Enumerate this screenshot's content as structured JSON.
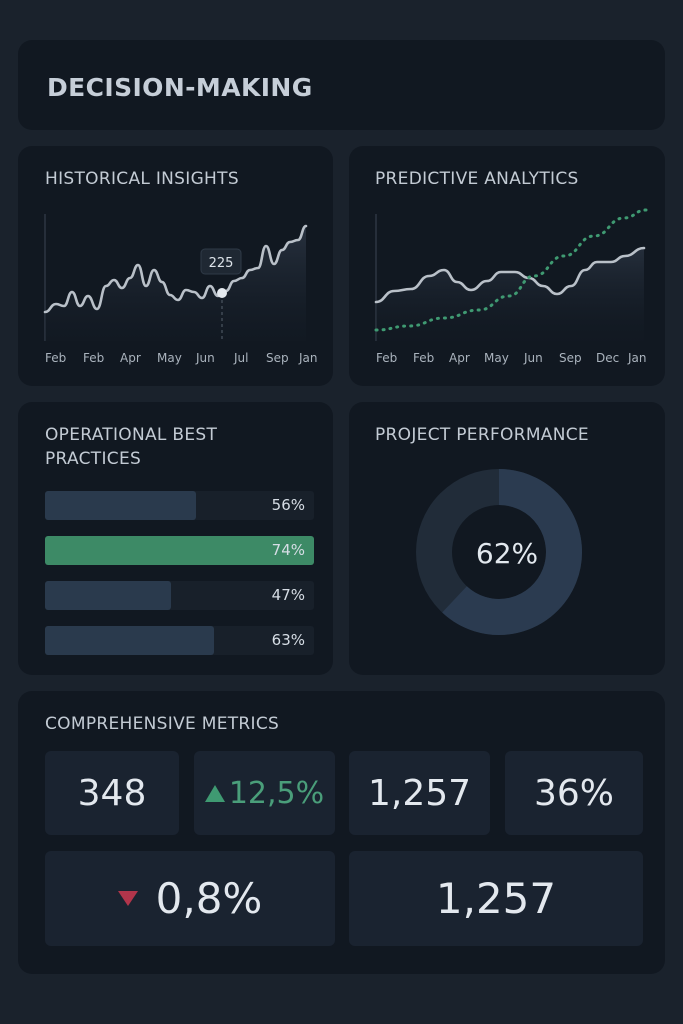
{
  "header": {
    "title": "DECISION-MAKING"
  },
  "historical": {
    "title": "HISTORICAL INSIGHTS",
    "tooltip": "225",
    "x_labels": [
      "Feb",
      "Feb",
      "Apr",
      "May",
      "Jun",
      "Jul",
      "Sep",
      "Jan"
    ],
    "line_color": "#b9c0c8"
  },
  "predictive": {
    "title": "PREDICTIVE ANALYTICS",
    "x_labels": [
      "Feb",
      "Feb",
      "Apr",
      "May",
      "Jun",
      "Sep",
      "Dec",
      "Jan"
    ],
    "line_color": "#b9c0c8",
    "forecast_color": "#3f9a72"
  },
  "operational": {
    "title": "OPERATIONAL BEST PRACTICES",
    "bars": [
      {
        "label": "56%",
        "value": 0.56,
        "highlight": false
      },
      {
        "label": "74%",
        "value": 0.74,
        "highlight": true
      },
      {
        "label": "47%",
        "value": 0.47,
        "highlight": false
      },
      {
        "label": "63%",
        "value": 0.63,
        "highlight": false
      }
    ]
  },
  "project": {
    "title": "PROJECT PERFORMANCE",
    "percent_label": "62%",
    "value": 0.62,
    "fill_color": "#2b3b50",
    "track_color": "#212c39"
  },
  "metrics": {
    "title": "COMPREHENSIVE METRICS",
    "tiles": {
      "a": "348",
      "b": "12,5%",
      "c": "1,257",
      "d": "36%",
      "e": "0,8%",
      "f": "1,257"
    },
    "colors": {
      "up": "#3f9a72",
      "down": "#b2354b"
    }
  }
}
